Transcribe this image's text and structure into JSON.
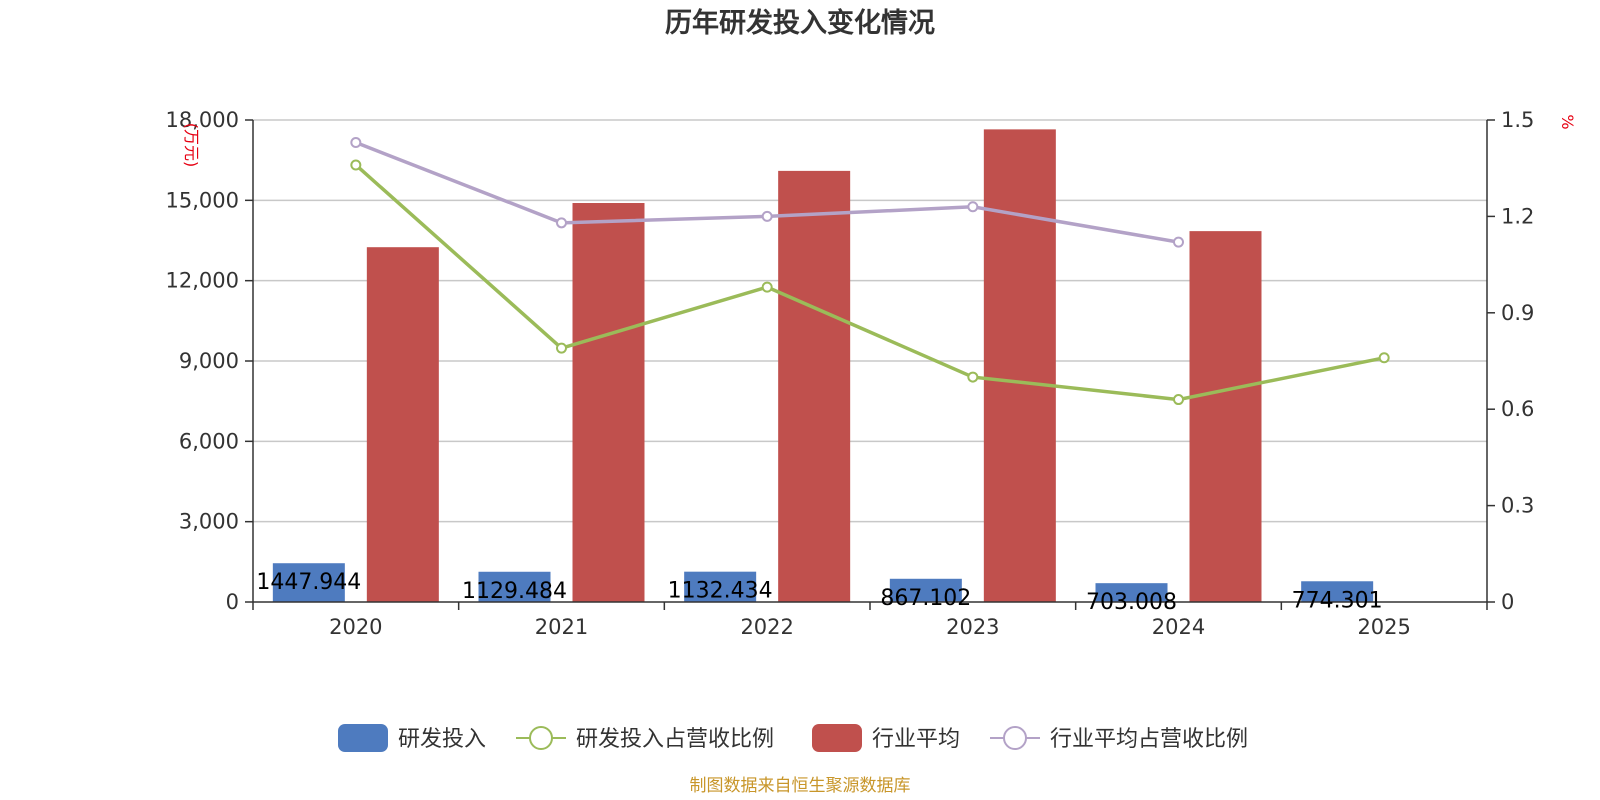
{
  "chart_data": {
    "type": "bar",
    "title": "历年研发投入变化情况",
    "categories": [
      "2020",
      "2021",
      "2022",
      "2023",
      "2024",
      "2025"
    ],
    "y_left": {
      "unit": "(万元)",
      "ticks": [
        "0",
        "3,000",
        "6,000",
        "9,000",
        "12,000",
        "15,000",
        "18,000"
      ],
      "range": [
        0,
        18000
      ]
    },
    "y_right": {
      "unit": "%",
      "ticks": [
        "0",
        "0.3",
        "0.6",
        "0.9",
        "1.2",
        "1.5"
      ],
      "range": [
        0,
        1.5
      ]
    },
    "series": [
      {
        "name": "研发投入",
        "kind": "bar",
        "axis": "left",
        "color": "#4e7bbf",
        "values": [
          1447.944,
          1129.484,
          1132.434,
          867.102,
          703.008,
          774.301
        ],
        "labels": [
          "1447.944",
          "1129.484",
          "1132.434",
          "867.102",
          "703.008",
          "774.301"
        ]
      },
      {
        "name": "研发投入占营收比例",
        "kind": "line",
        "axis": "right",
        "color": "#9bbb59",
        "values": [
          1.36,
          0.79,
          0.98,
          0.7,
          0.63,
          0.76
        ]
      },
      {
        "name": "行业平均",
        "kind": "bar",
        "axis": "left",
        "color": "#c0504d",
        "values": [
          13250,
          14900,
          16100,
          17650,
          13850,
          null
        ]
      },
      {
        "name": "行业平均占营收比例",
        "kind": "line",
        "axis": "right",
        "color": "#b3a2c7",
        "values": [
          1.43,
          1.18,
          1.2,
          1.23,
          1.12,
          null
        ]
      }
    ],
    "grid": true,
    "legend": "bottom"
  },
  "source": "制图数据来自恒生聚源数据库"
}
